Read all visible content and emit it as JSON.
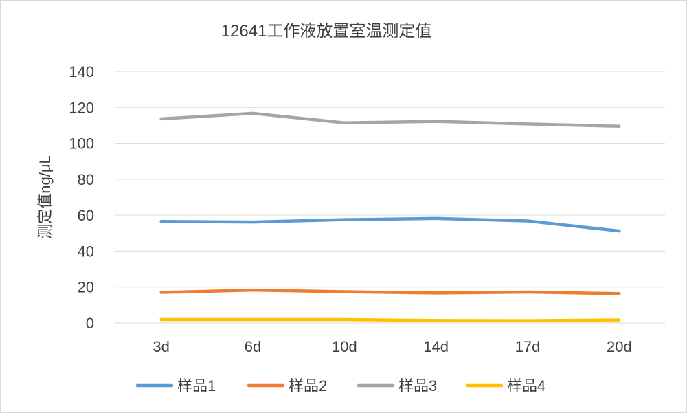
{
  "chart_data": {
    "type": "line",
    "title": "12641工作液放置室温测定值",
    "xlabel": "",
    "ylabel": "测定值ng/μL",
    "categories": [
      "3d",
      "6d",
      "10d",
      "14d",
      "17d",
      "20d"
    ],
    "ylim": [
      0,
      140
    ],
    "yticks": [
      0,
      20,
      40,
      60,
      80,
      100,
      120,
      140
    ],
    "grid": true,
    "legend_position": "bottom",
    "series": [
      {
        "name": "样品1",
        "color": "#5B9BD5",
        "values": [
          56.5,
          56.2,
          57.5,
          58.2,
          56.8,
          51.2
        ]
      },
      {
        "name": "样品2",
        "color": "#ED7D31",
        "values": [
          17.0,
          18.3,
          17.4,
          16.7,
          17.2,
          16.3
        ]
      },
      {
        "name": "样品3",
        "color": "#A5A5A5",
        "values": [
          113.6,
          116.7,
          111.4,
          112.2,
          110.8,
          109.5
        ]
      },
      {
        "name": "样品4",
        "color": "#FFC000",
        "values": [
          1.9,
          1.9,
          1.9,
          1.4,
          1.3,
          1.7
        ]
      }
    ]
  }
}
